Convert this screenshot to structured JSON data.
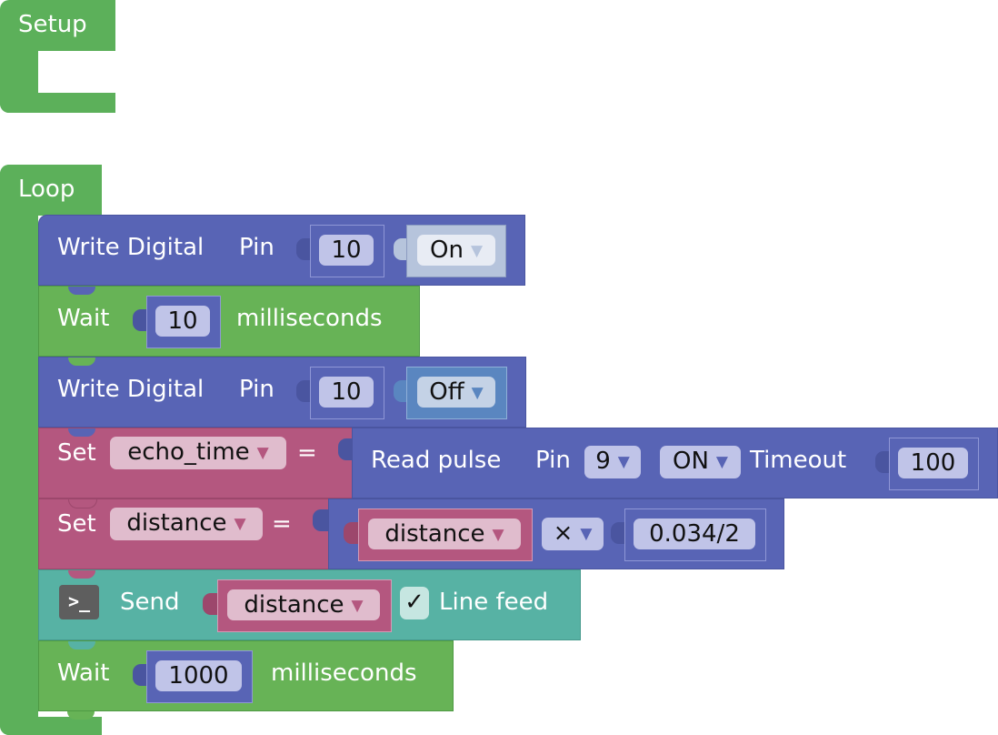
{
  "setup": {
    "label": "Setup"
  },
  "loop": {
    "label": "Loop"
  },
  "blocks": {
    "write1": {
      "label": "Write Digital",
      "pin_label": "Pin",
      "pin": "10",
      "state": "On"
    },
    "wait1": {
      "label": "Wait",
      "value": "10",
      "unit": "milliseconds"
    },
    "write2": {
      "label": "Write Digital",
      "pin_label": "Pin",
      "pin": "10",
      "state": "Off"
    },
    "set1": {
      "label": "Set",
      "variable": "echo_time",
      "eq": "=",
      "read": {
        "label": "Read pulse",
        "pin_label": "Pin",
        "pin": "9",
        "level": "ON",
        "timeout_label": "Timeout",
        "timeout": "100"
      }
    },
    "set2": {
      "label": "Set",
      "variable": "distance",
      "eq": "=",
      "expr": {
        "variable": "distance",
        "op": "×",
        "value": "0.034/2"
      }
    },
    "send": {
      "label": "Send",
      "variable": "distance",
      "check": "✓",
      "linefeed": "Line feed"
    },
    "wait2": {
      "label": "Wait",
      "value": "1000",
      "unit": "milliseconds"
    }
  },
  "colors": {
    "control": "#5cb05a",
    "io": "#5864b5",
    "variable": "#b4577f",
    "serial": "#57b2a4"
  }
}
